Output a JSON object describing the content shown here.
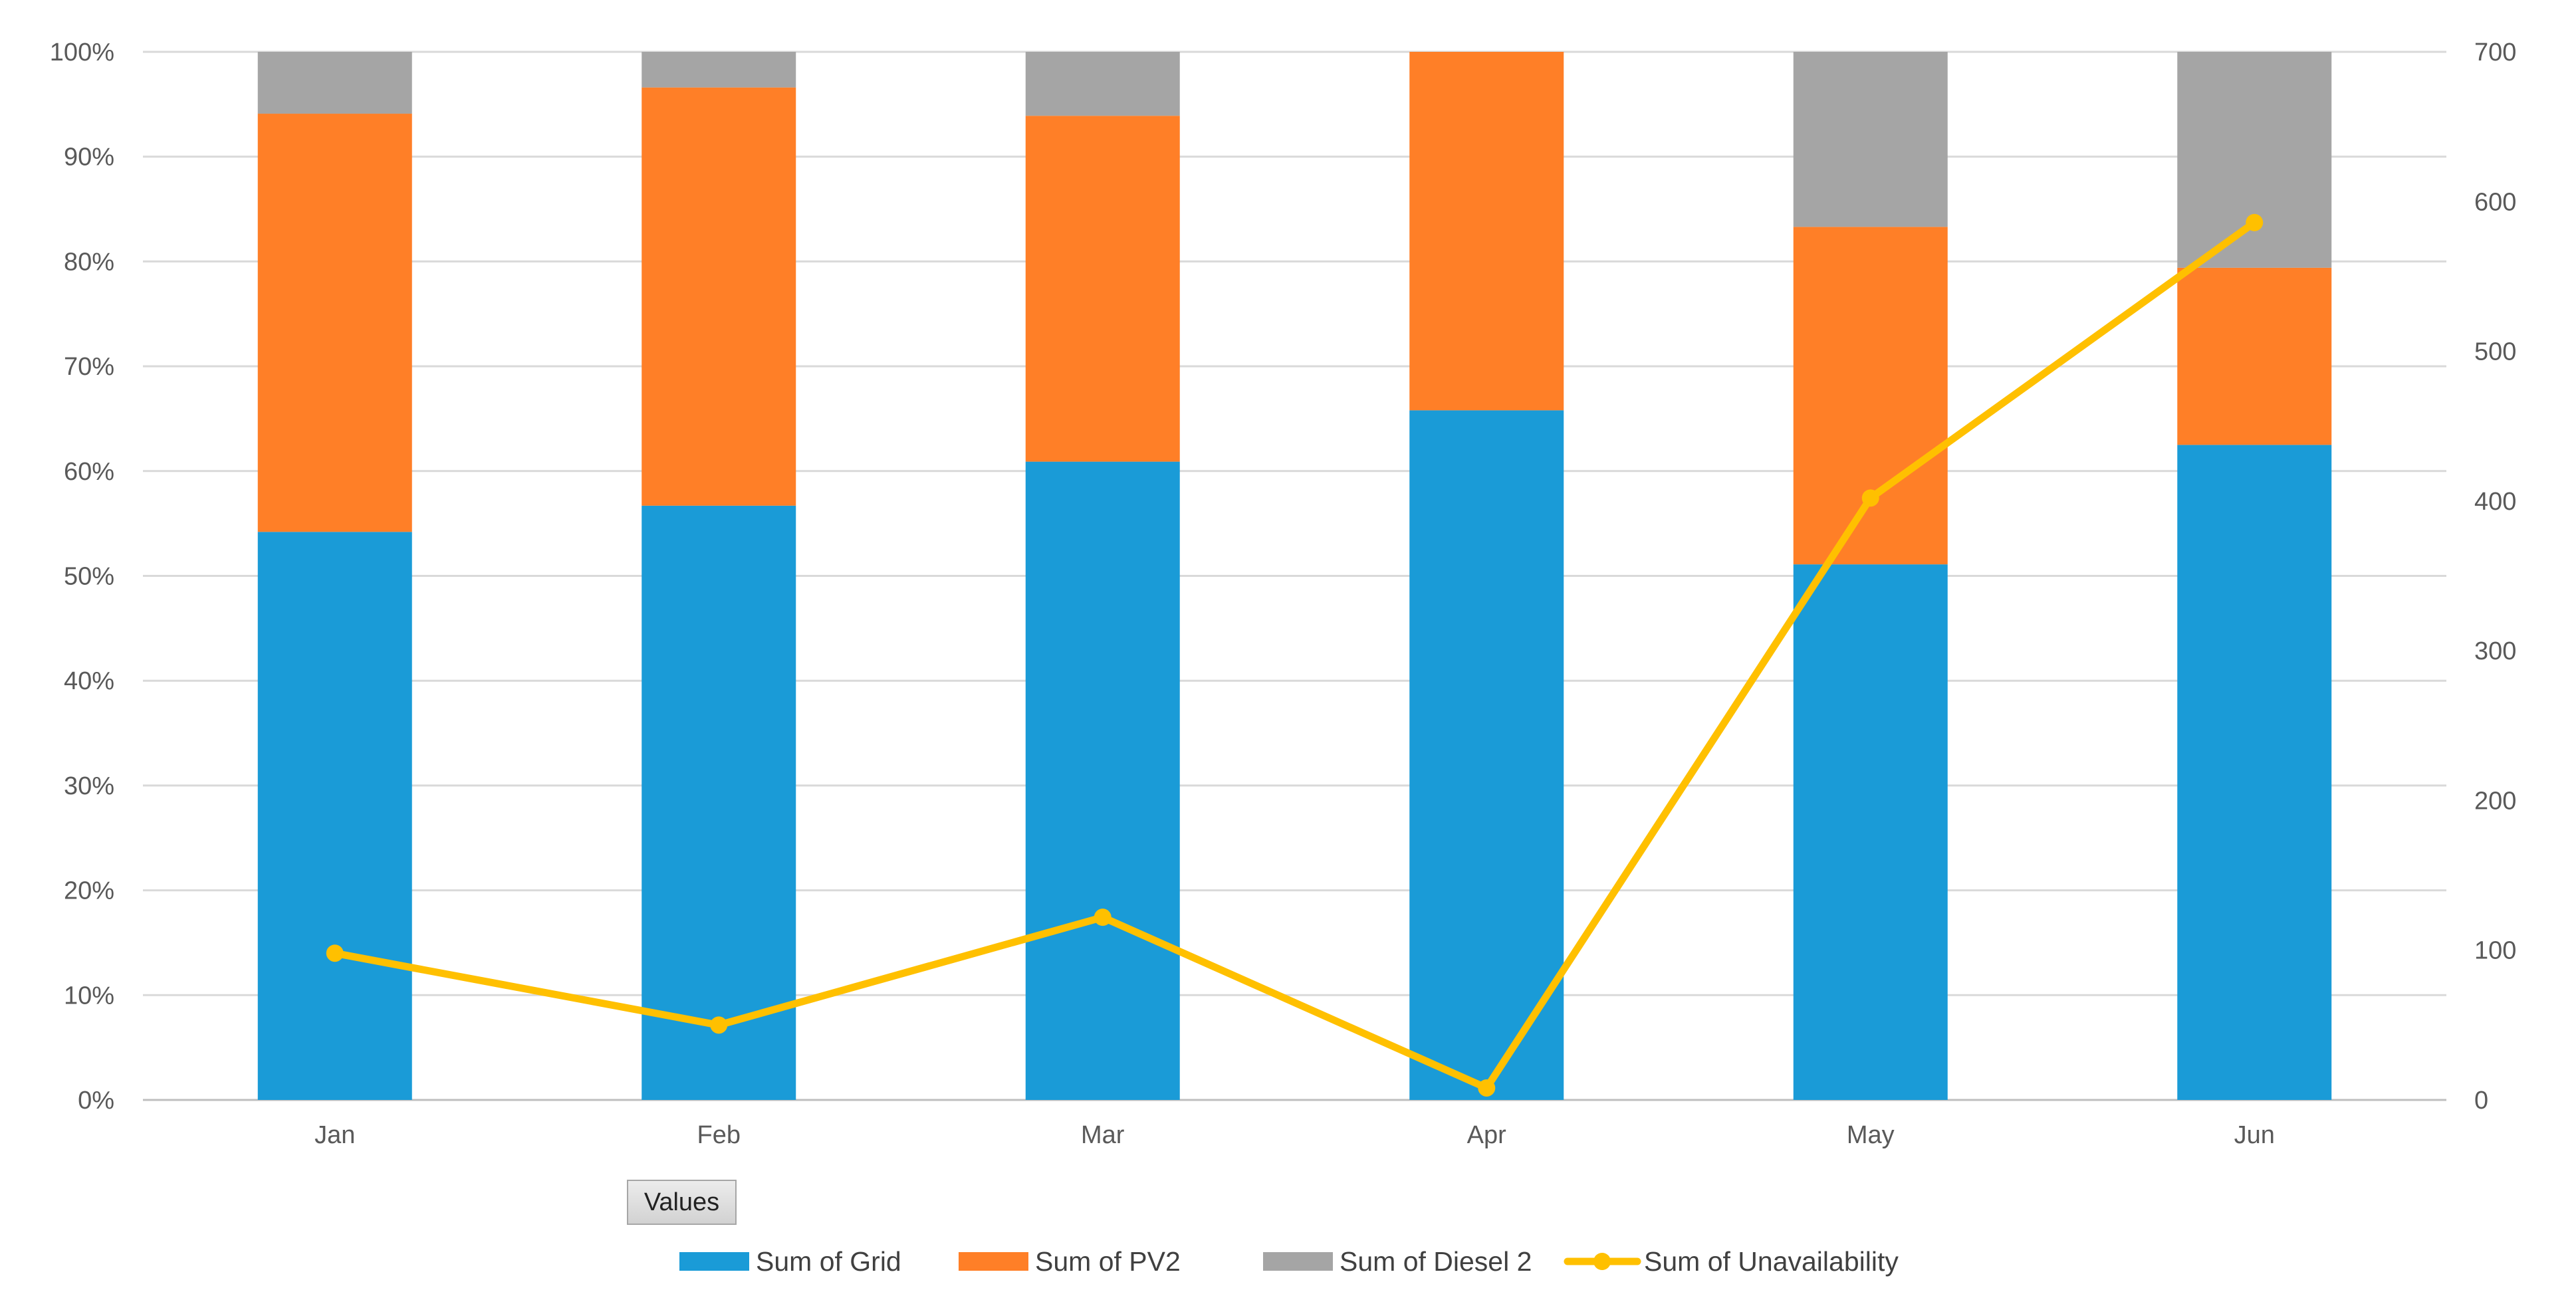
{
  "chart_data": {
    "type": "bar",
    "stacked": "percent",
    "categories": [
      "Jan",
      "Feb",
      "Mar",
      "Apr",
      "May",
      "Jun"
    ],
    "series": [
      {
        "name": "Sum of Grid",
        "type": "bar",
        "color": "#1A9BD7",
        "values": [
          54.2,
          56.7,
          60.9,
          65.8,
          51.1,
          62.5
        ]
      },
      {
        "name": "Sum of PV2",
        "type": "bar",
        "color": "#FF7F27",
        "values": [
          39.9,
          39.9,
          33.0,
          34.2,
          32.2,
          16.9
        ]
      },
      {
        "name": "Sum of Diesel 2",
        "type": "bar",
        "color": "#A5A5A5",
        "values": [
          5.9,
          3.4,
          6.1,
          0.0,
          16.7,
          20.6
        ]
      },
      {
        "name": "Sum of Unavailability",
        "type": "line",
        "axis": "secondary",
        "color": "#FFC000",
        "values": [
          98,
          50,
          122,
          8,
          402,
          586
        ]
      }
    ],
    "y_ticks": [
      "0%",
      "10%",
      "20%",
      "30%",
      "40%",
      "50%",
      "60%",
      "70%",
      "80%",
      "90%",
      "100%"
    ],
    "ylim": [
      0,
      100
    ],
    "y2_ticks": [
      "0",
      "100",
      "200",
      "300",
      "400",
      "500",
      "600",
      "700"
    ],
    "y2lim": [
      0,
      700
    ],
    "grid": true,
    "legend_position": "bottom",
    "filter_button": "Values"
  }
}
